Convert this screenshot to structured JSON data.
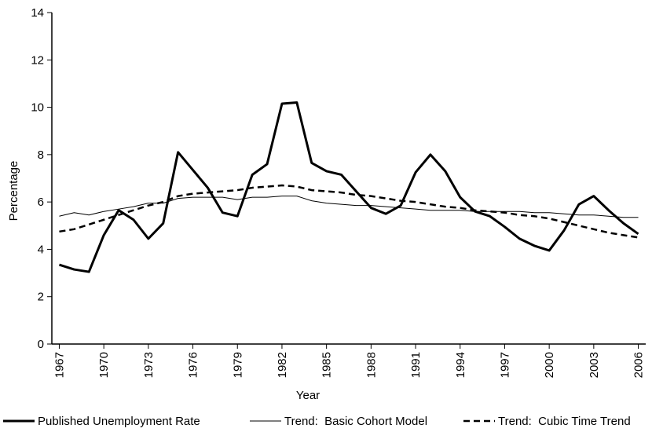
{
  "chart_data": {
    "type": "line",
    "x_label": "Year",
    "y_label": "Percentage",
    "x": [
      1967,
      1968,
      1969,
      1970,
      1971,
      1972,
      1973,
      1974,
      1975,
      1976,
      1977,
      1978,
      1979,
      1980,
      1981,
      1982,
      1983,
      1984,
      1985,
      1986,
      1987,
      1988,
      1989,
      1990,
      1991,
      1992,
      1993,
      1994,
      1995,
      1996,
      1997,
      1998,
      1999,
      2000,
      2001,
      2002,
      2003,
      2004,
      2005,
      2006
    ],
    "series": [
      {
        "name": "Published Unemployment Rate",
        "color": "#000000",
        "style": "thick",
        "values": [
          3.35,
          3.15,
          3.05,
          4.6,
          5.65,
          5.25,
          4.45,
          5.1,
          8.1,
          7.35,
          6.6,
          5.55,
          5.4,
          7.15,
          7.6,
          10.15,
          10.2,
          7.65,
          7.3,
          7.15,
          6.45,
          5.75,
          5.5,
          5.85,
          7.25,
          8.0,
          7.3,
          6.2,
          5.6,
          5.4,
          4.95,
          4.45,
          4.15,
          3.95,
          4.8,
          5.9,
          6.25,
          5.65,
          5.1,
          4.65
        ]
      },
      {
        "name": "Trend:  Basic Cohort Model",
        "color": "#000000",
        "style": "thin",
        "values": [
          5.4,
          5.55,
          5.45,
          5.6,
          5.7,
          5.8,
          5.95,
          5.95,
          6.15,
          6.2,
          6.2,
          6.2,
          6.1,
          6.2,
          6.2,
          6.25,
          6.25,
          6.05,
          5.95,
          5.9,
          5.85,
          5.85,
          5.8,
          5.75,
          5.7,
          5.65,
          5.65,
          5.65,
          5.6,
          5.6,
          5.6,
          5.6,
          5.55,
          5.55,
          5.5,
          5.45,
          5.45,
          5.4,
          5.35,
          5.35
        ]
      },
      {
        "name": "Trend:  Cubic Time Trend",
        "color": "#000000",
        "style": "dashed",
        "values": [
          4.75,
          4.85,
          5.05,
          5.25,
          5.45,
          5.65,
          5.85,
          6.0,
          6.25,
          6.35,
          6.4,
          6.45,
          6.5,
          6.6,
          6.65,
          6.7,
          6.65,
          6.5,
          6.45,
          6.4,
          6.3,
          6.25,
          6.15,
          6.05,
          6.0,
          5.9,
          5.8,
          5.75,
          5.65,
          5.6,
          5.55,
          5.45,
          5.4,
          5.3,
          5.15,
          5.0,
          4.85,
          4.7,
          4.6,
          4.5
        ]
      }
    ],
    "xlim": [
      1966.5,
      2006.5
    ],
    "xticks": [
      1967,
      1970,
      1973,
      1976,
      1979,
      1982,
      1985,
      1988,
      1991,
      1994,
      1997,
      2000,
      2003,
      2006
    ],
    "ylim": [
      0,
      14
    ],
    "yticks": [
      0,
      2,
      4,
      6,
      8,
      10,
      12,
      14
    ],
    "grid": false,
    "legend": "bottom"
  }
}
